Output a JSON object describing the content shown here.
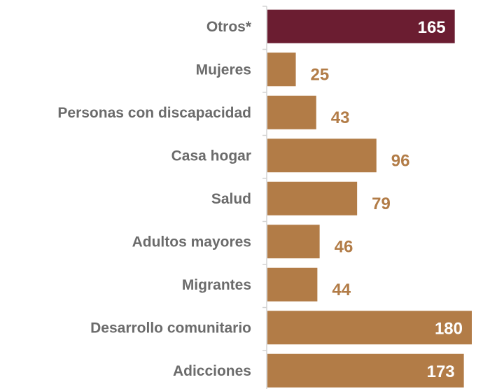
{
  "chart_data": {
    "type": "bar",
    "orientation": "horizontal",
    "categories": [
      "Otros*",
      "Mujeres",
      "Personas con discapacidad",
      "Casa hogar",
      "Salud",
      "Adultos mayores",
      "Migrantes",
      "Desarrollo comunitario",
      "Adicciones"
    ],
    "values": [
      165,
      25,
      43,
      96,
      79,
      46,
      44,
      180,
      173
    ],
    "xlim": [
      0,
      180
    ],
    "grid": false,
    "legend": "none",
    "colors": {
      "highlight": "#6b1d31",
      "bar": "#b27c47",
      "label": "#6b6b6b",
      "axis": "#d3d3d3",
      "inside_value": "#ffffff"
    },
    "highlight_index": 0
  }
}
